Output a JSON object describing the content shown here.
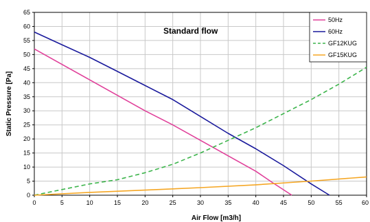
{
  "chart_data": {
    "type": "line",
    "title": "Standard flow",
    "xlabel": "Air Flow [m3/h]",
    "ylabel": "Static Pressure [Pa]",
    "xlim": [
      0,
      60
    ],
    "ylim": [
      0,
      65
    ],
    "xticks": [
      0,
      5,
      10,
      15,
      20,
      25,
      30,
      35,
      40,
      45,
      50,
      55,
      60
    ],
    "yticks": [
      0,
      5,
      10,
      15,
      20,
      25,
      30,
      35,
      40,
      45,
      50,
      55,
      60,
      65
    ],
    "grid": true,
    "legend_position": "top-right",
    "series": [
      {
        "name": "50Hz",
        "color": "#e0409a",
        "dash": "solid",
        "points": [
          [
            0,
            52
          ],
          [
            5,
            46.5
          ],
          [
            10,
            41
          ],
          [
            15,
            35.5
          ],
          [
            20,
            30
          ],
          [
            25,
            25
          ],
          [
            30,
            19.5
          ],
          [
            35,
            14
          ],
          [
            40,
            8.5
          ],
          [
            43,
            4.5
          ],
          [
            46.5,
            0
          ]
        ]
      },
      {
        "name": "60Hz",
        "color": "#1a1a9c",
        "dash": "solid",
        "points": [
          [
            0,
            58
          ],
          [
            5,
            53.5
          ],
          [
            10,
            49
          ],
          [
            15,
            44
          ],
          [
            20,
            39
          ],
          [
            25,
            34
          ],
          [
            30,
            28
          ],
          [
            35,
            22
          ],
          [
            40,
            16.5
          ],
          [
            45,
            10.5
          ],
          [
            50,
            4
          ],
          [
            53.3,
            0
          ]
        ]
      },
      {
        "name": "GF12KUG",
        "color": "#3cb44b",
        "dash": "dashed",
        "points": [
          [
            0,
            0
          ],
          [
            5,
            2
          ],
          [
            10,
            4
          ],
          [
            15,
            5.5
          ],
          [
            20,
            8
          ],
          [
            25,
            11
          ],
          [
            30,
            15
          ],
          [
            35,
            19.5
          ],
          [
            40,
            24
          ],
          [
            45,
            29
          ],
          [
            50,
            34
          ],
          [
            55,
            39.5
          ],
          [
            60,
            45.5
          ]
        ]
      },
      {
        "name": "GF15KUG",
        "color": "#f5a623",
        "dash": "solid",
        "points": [
          [
            0,
            0
          ],
          [
            10,
            1
          ],
          [
            20,
            1.8
          ],
          [
            30,
            2.7
          ],
          [
            40,
            3.7
          ],
          [
            50,
            5
          ],
          [
            60,
            6.5
          ]
        ]
      }
    ]
  }
}
